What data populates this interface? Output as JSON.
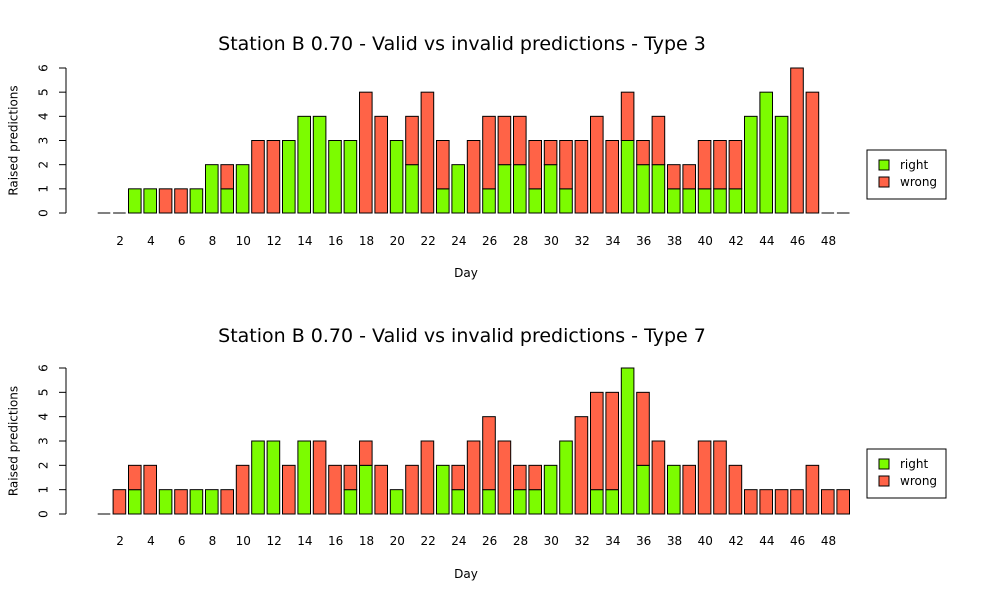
{
  "colors": {
    "right": "#7CFC00",
    "wrong": "#FF6347"
  },
  "chart_data": [
    {
      "type": "bar",
      "stacked": true,
      "title": "Station B 0.70 - Valid vs invalid predictions - Type 3",
      "xlabel": "Day",
      "ylabel": "Raised predictions",
      "ylim": [
        0,
        6
      ],
      "yticks": [
        0,
        1,
        2,
        3,
        4,
        5,
        6
      ],
      "x_tick_labels": [
        "2",
        "4",
        "6",
        "8",
        "10",
        "12",
        "14",
        "16",
        "18",
        "20",
        "22",
        "24",
        "26",
        "28",
        "30",
        "32",
        "34",
        "36",
        "38",
        "40",
        "42",
        "44",
        "46",
        "48"
      ],
      "legend": {
        "position": "right",
        "entries": [
          "right",
          "wrong"
        ]
      },
      "categories": [
        1,
        2,
        3,
        4,
        5,
        6,
        7,
        8,
        9,
        10,
        11,
        12,
        13,
        14,
        15,
        16,
        17,
        18,
        19,
        20,
        21,
        22,
        23,
        24,
        25,
        26,
        27,
        28,
        29,
        30,
        31,
        32,
        33,
        34,
        35,
        36,
        37,
        38,
        39,
        40,
        41,
        42,
        43,
        44,
        45,
        46,
        47,
        48,
        49
      ],
      "series": [
        {
          "name": "right",
          "values": [
            0,
            0,
            1,
            1,
            0,
            0,
            1,
            2,
            1,
            2,
            0,
            0,
            3,
            4,
            4,
            3,
            3,
            0,
            0,
            3,
            2,
            0,
            1,
            2,
            0,
            1,
            2,
            2,
            1,
            2,
            1,
            0,
            0,
            0,
            3,
            2,
            2,
            1,
            1,
            1,
            1,
            1,
            4,
            5,
            4,
            0,
            0,
            0,
            0
          ]
        },
        {
          "name": "wrong",
          "values": [
            0,
            0,
            0,
            0,
            1,
            1,
            0,
            0,
            1,
            0,
            3,
            3,
            0,
            0,
            0,
            0,
            0,
            5,
            4,
            0,
            2,
            5,
            2,
            0,
            3,
            3,
            2,
            2,
            2,
            1,
            2,
            3,
            4,
            3,
            2,
            1,
            2,
            1,
            1,
            2,
            2,
            2,
            0,
            0,
            0,
            6,
            5,
            0,
            0
          ]
        }
      ]
    },
    {
      "type": "bar",
      "stacked": true,
      "title": "Station B 0.70 - Valid vs invalid predictions - Type 7",
      "xlabel": "Day",
      "ylabel": "Raised predictions",
      "ylim": [
        0,
        6
      ],
      "yticks": [
        0,
        1,
        2,
        3,
        4,
        5,
        6
      ],
      "x_tick_labels": [
        "2",
        "4",
        "6",
        "8",
        "10",
        "12",
        "14",
        "16",
        "18",
        "20",
        "22",
        "24",
        "26",
        "28",
        "30",
        "32",
        "34",
        "36",
        "38",
        "40",
        "42",
        "44",
        "46",
        "48"
      ],
      "legend": {
        "position": "right",
        "entries": [
          "right",
          "wrong"
        ]
      },
      "categories": [
        1,
        2,
        3,
        4,
        5,
        6,
        7,
        8,
        9,
        10,
        11,
        12,
        13,
        14,
        15,
        16,
        17,
        18,
        19,
        20,
        21,
        22,
        23,
        24,
        25,
        26,
        27,
        28,
        29,
        30,
        31,
        32,
        33,
        34,
        35,
        36,
        37,
        38,
        39,
        40,
        41,
        42,
        43,
        44,
        45,
        46,
        47,
        48,
        49
      ],
      "series": [
        {
          "name": "right",
          "values": [
            0,
            0,
            1,
            0,
            1,
            0,
            1,
            1,
            0,
            0,
            3,
            3,
            0,
            3,
            0,
            0,
            1,
            2,
            0,
            1,
            0,
            0,
            2,
            1,
            0,
            1,
            0,
            1,
            1,
            2,
            3,
            0,
            1,
            1,
            6,
            2,
            0,
            2,
            0,
            0,
            0,
            0,
            0,
            0,
            0,
            0,
            0,
            0,
            0
          ]
        },
        {
          "name": "wrong",
          "values": [
            0,
            1,
            1,
            2,
            0,
            1,
            0,
            0,
            1,
            2,
            0,
            0,
            2,
            0,
            3,
            2,
            1,
            1,
            2,
            0,
            2,
            3,
            0,
            1,
            3,
            3,
            3,
            1,
            1,
            0,
            0,
            4,
            4,
            4,
            0,
            3,
            3,
            0,
            2,
            3,
            3,
            2,
            1,
            1,
            1,
            1,
            2,
            1,
            1
          ]
        }
      ]
    }
  ]
}
